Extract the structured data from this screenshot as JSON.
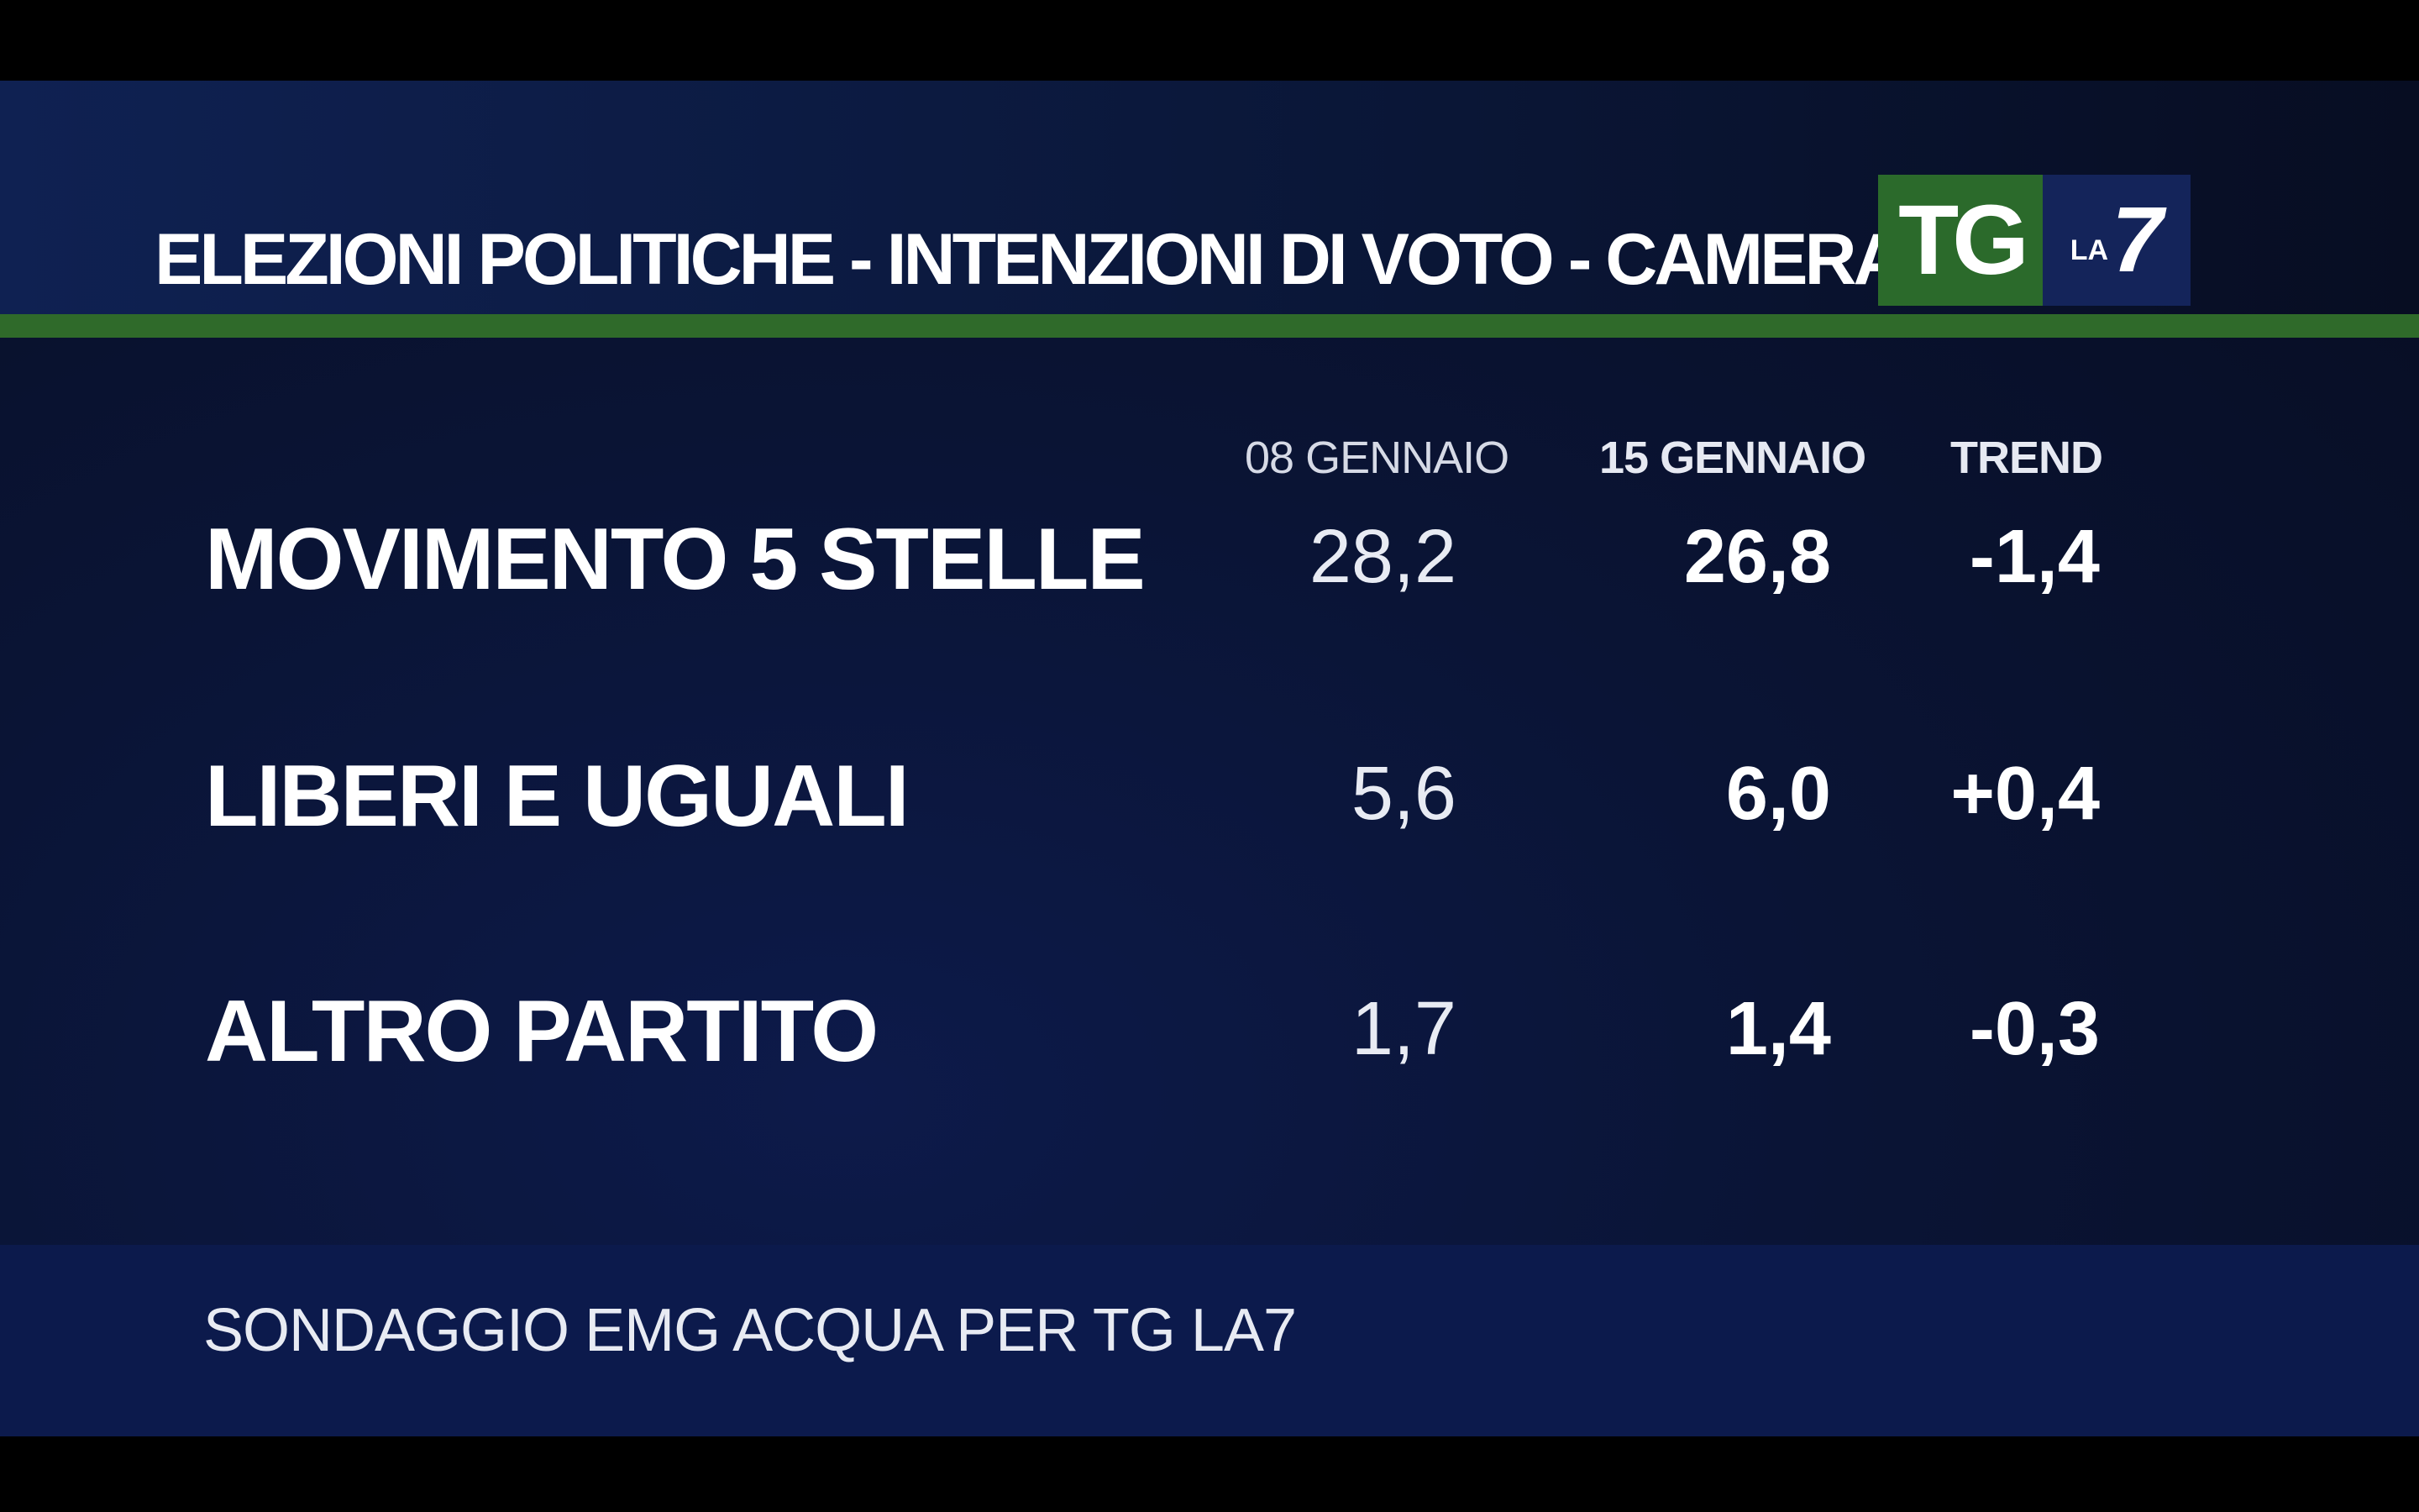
{
  "header": {
    "title": "ELEZIONI POLITICHE - INTENZIONI DI VOTO - CAMERA",
    "logo_tg": "TG",
    "logo_la": "LA",
    "logo_7": "7"
  },
  "columns": {
    "previous": "08 GENNAIO",
    "current": "15 GENNAIO",
    "trend": "TREND"
  },
  "rows": [
    {
      "party": "MOVIMENTO 5 STELLE",
      "previous": "28,2",
      "current": "26,8",
      "trend": "-1,4"
    },
    {
      "party": "LIBERI E UGUALI",
      "previous": "5,6",
      "current": "6,0",
      "trend": "+0,4"
    },
    {
      "party": "ALTRO PARTITO",
      "previous": "1,7",
      "current": "1,4",
      "trend": "-0,3"
    }
  ],
  "footer": {
    "source": "SONDAGGIO EMG ACQUA PER TG LA7"
  },
  "colors": {
    "background": "#0a1435",
    "green_rule": "#2f6a2a",
    "logo_green": "#2b6a2b",
    "logo_blue": "#14245a",
    "text": "#ffffff"
  }
}
